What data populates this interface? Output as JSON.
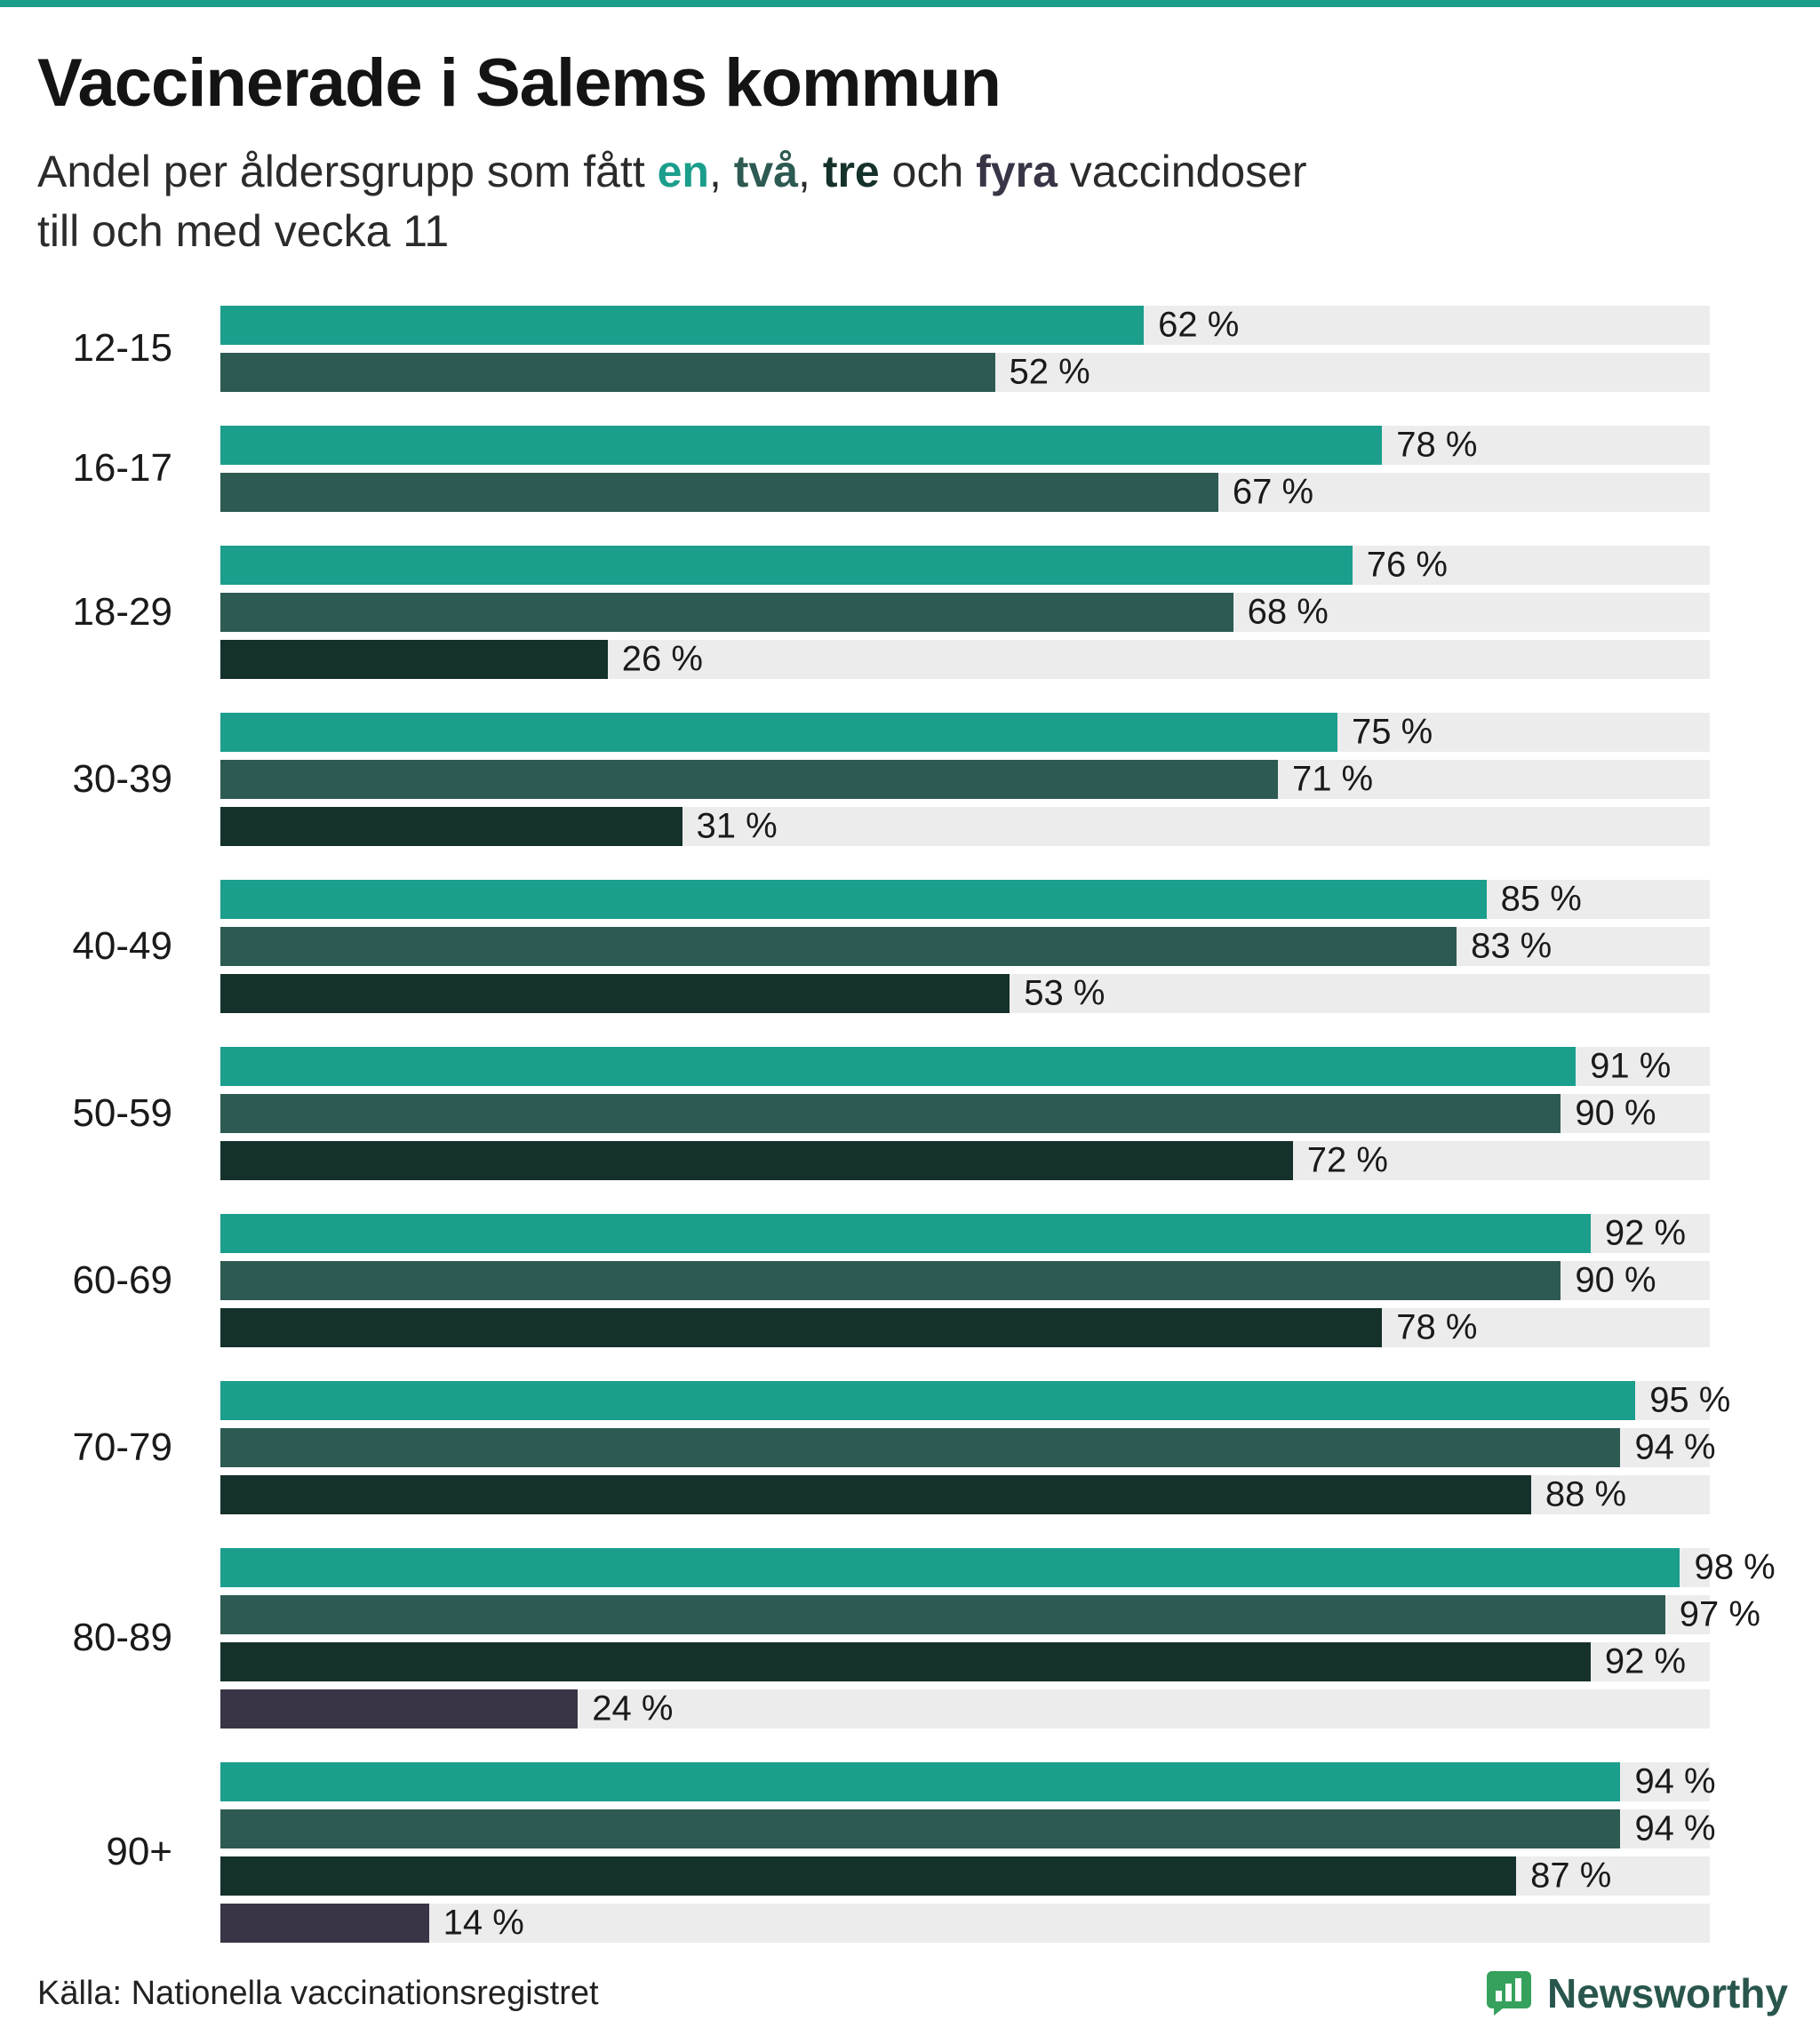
{
  "page": {
    "accent_color": "#1b9e8c"
  },
  "header": {
    "title": "Vaccinerade i Salems kommun",
    "subtitle": {
      "part1": "Andel per åldersgrupp som fått ",
      "dose1_word": "en",
      "sep1": ", ",
      "dose2_word": "två",
      "sep2": ", ",
      "dose3_word": "tre",
      "sep3": " och ",
      "dose4_word": "fyra",
      "part2": " vaccindoser",
      "line2": "till och med vecka 11"
    }
  },
  "chart_data": {
    "type": "bar",
    "orientation": "horizontal",
    "unit": "%",
    "xlim": [
      0,
      100
    ],
    "grid": false,
    "legend_position": "in-subtitle",
    "series_names": [
      "en dos",
      "två doser",
      "tre doser",
      "fyra doser"
    ],
    "series_colors": [
      "#1b9e8c",
      "#2d5a52",
      "#15312b",
      "#3a3546"
    ],
    "track_color": "#ececec",
    "groups": [
      {
        "label": "12-15",
        "values": [
          62,
          52
        ]
      },
      {
        "label": "16-17",
        "values": [
          78,
          67
        ]
      },
      {
        "label": "18-29",
        "values": [
          76,
          68,
          26
        ]
      },
      {
        "label": "30-39",
        "values": [
          75,
          71,
          31
        ]
      },
      {
        "label": "40-49",
        "values": [
          85,
          83,
          53
        ]
      },
      {
        "label": "50-59",
        "values": [
          91,
          90,
          72
        ]
      },
      {
        "label": "60-69",
        "values": [
          92,
          90,
          78
        ]
      },
      {
        "label": "70-79",
        "values": [
          95,
          94,
          88
        ]
      },
      {
        "label": "80-89",
        "values": [
          98,
          97,
          92,
          24
        ]
      },
      {
        "label": "90+",
        "values": [
          94,
          94,
          87,
          14
        ]
      }
    ]
  },
  "footer": {
    "source": "Källa: Nationella vaccinationsregistret",
    "brand": "Newsworthy"
  }
}
